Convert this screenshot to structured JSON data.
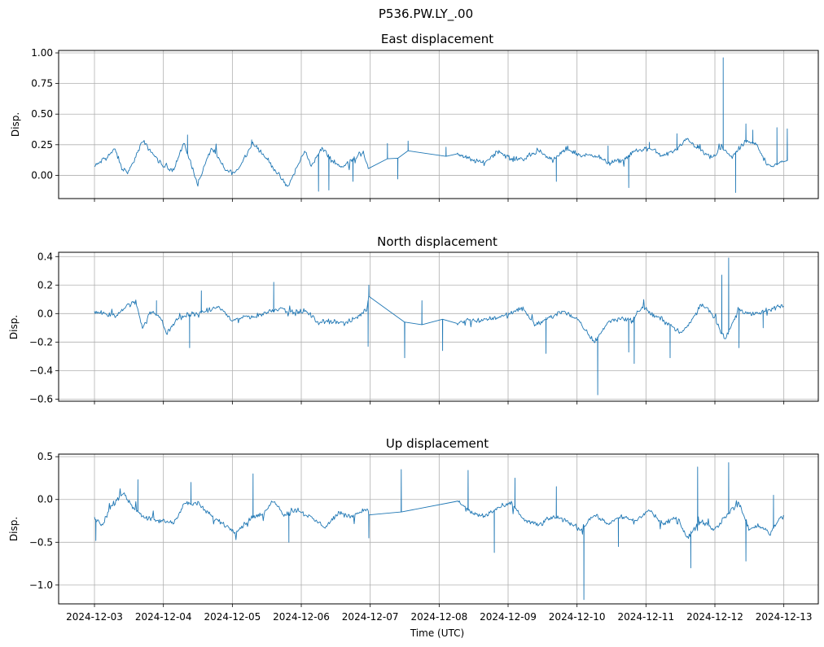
{
  "figure": {
    "suptitle": "P536.PW.LY_.00",
    "xlabel": "Time (UTC)",
    "x_ticks": [
      "2024-12-03",
      "2024-12-04",
      "2024-12-05",
      "2024-12-06",
      "2024-12-07",
      "2024-12-08",
      "2024-12-09",
      "2024-12-10",
      "2024-12-11",
      "2024-12-12",
      "2024-12-13"
    ],
    "line_color": "#1f77b4",
    "grid_color": "#b0b0b0"
  },
  "chart_data": [
    {
      "type": "line",
      "title": "East displacement",
      "ylabel": "Disp.",
      "xlim": [
        -0.52,
        10.5
      ],
      "ylim": [
        -0.19,
        1.02
      ],
      "y_ticks": [
        0.0,
        0.25,
        0.5,
        0.75,
        1.0
      ],
      "y_tick_labels": [
        "0.00",
        "0.25",
        "0.50",
        "0.75",
        "1.00"
      ],
      "grid": true,
      "gap": [
        3.98,
        5.25
      ],
      "x": [
        0,
        0.3,
        0.4,
        0.5,
        0.7,
        0.9,
        1.0,
        1.15,
        1.3,
        1.5,
        1.7,
        1.9,
        2.05,
        2.3,
        2.55,
        2.8,
        2.95,
        3.05,
        3.15,
        3.3,
        3.45,
        3.6,
        3.7,
        3.9,
        3.97,
        3.98,
        4.15,
        4.35,
        4.55,
        4.75,
        4.85,
        5.05,
        5.15,
        5.25,
        5.45,
        5.65,
        5.85,
        6.05,
        6.25,
        6.45,
        6.65,
        6.85,
        7.05,
        7.25,
        7.45,
        7.65,
        7.85,
        8.05,
        8.25,
        8.45,
        8.6,
        8.7,
        8.8,
        8.95,
        9.1,
        9.25,
        9.45,
        9.6,
        9.75,
        9.85,
        10.0
      ],
      "y": [
        0.07,
        0.21,
        0.05,
        0.03,
        0.28,
        0.14,
        0.07,
        0.05,
        0.26,
        -0.07,
        0.23,
        0.04,
        0.02,
        0.27,
        0.1,
        -0.1,
        0.08,
        0.2,
        0.08,
        0.22,
        0.12,
        0.06,
        0.12,
        0.18,
        0.07,
        0.06,
        0.15,
        0.12,
        0.2,
        0.11,
        0.33,
        0.16,
        0.15,
        0.18,
        0.13,
        0.1,
        0.2,
        0.13,
        0.14,
        0.2,
        0.12,
        0.22,
        0.16,
        0.17,
        0.1,
        0.12,
        0.2,
        0.22,
        0.16,
        0.21,
        0.3,
        0.25,
        0.2,
        0.14,
        0.22,
        0.15,
        0.28,
        0.25,
        0.1,
        0.07,
        0.12
      ],
      "spikes": [
        [
          9.12,
          0.96
        ],
        [
          1.35,
          0.33
        ],
        [
          4.25,
          0.26
        ],
        [
          2.28,
          0.29
        ],
        [
          4.55,
          0.28
        ],
        [
          4.4,
          -0.03
        ],
        [
          5.1,
          0.23
        ],
        [
          6.7,
          -0.05
        ],
        [
          7.45,
          0.24
        ],
        [
          7.75,
          -0.1
        ],
        [
          8.45,
          0.34
        ],
        [
          9.45,
          0.42
        ],
        [
          9.3,
          -0.14
        ],
        [
          8.75,
          0.25
        ],
        [
          9.9,
          0.39
        ],
        [
          8.05,
          0.27
        ],
        [
          3.4,
          -0.12
        ],
        [
          3.25,
          -0.13
        ],
        [
          3.75,
          -0.05
        ],
        [
          9.55,
          0.37
        ],
        [
          10.05,
          0.38
        ]
      ]
    },
    {
      "type": "line",
      "title": "North displacement",
      "ylabel": "Disp.",
      "xlim": [
        -0.52,
        10.5
      ],
      "ylim": [
        -0.615,
        0.43
      ],
      "y_ticks": [
        -0.6,
        -0.4,
        -0.2,
        0.0,
        0.2,
        0.4
      ],
      "y_tick_labels": [
        "−0.6",
        "−0.4",
        "−0.2",
        "0.0",
        "0.2",
        "0.4"
      ],
      "grid": true,
      "gap": [
        3.98,
        5.25
      ],
      "x": [
        0,
        0.2,
        0.3,
        0.45,
        0.6,
        0.7,
        0.8,
        0.95,
        1.05,
        1.2,
        1.35,
        1.5,
        1.65,
        1.8,
        2.0,
        2.2,
        2.35,
        2.5,
        2.7,
        2.9,
        3.05,
        3.25,
        3.45,
        3.65,
        3.8,
        3.95,
        3.98,
        4.2,
        4.35,
        4.5,
        4.7,
        4.9,
        5.05,
        5.25,
        5.4,
        5.55,
        5.8,
        6.0,
        6.2,
        6.4,
        6.6,
        6.8,
        7.0,
        7.25,
        7.45,
        7.65,
        7.8,
        7.95,
        8.1,
        8.3,
        8.5,
        8.65,
        8.8,
        8.95,
        9.15,
        9.35,
        9.55,
        9.75,
        9.9,
        10.0
      ],
      "y": [
        0.02,
        -0.01,
        -0.02,
        0.05,
        0.08,
        -0.1,
        0.01,
        -0.02,
        -0.14,
        -0.04,
        -0.01,
        0.0,
        0.02,
        0.05,
        -0.05,
        -0.02,
        -0.02,
        0.01,
        0.04,
        0.0,
        0.02,
        -0.06,
        -0.05,
        -0.07,
        -0.03,
        0.03,
        0.12,
        0.06,
        -0.07,
        -0.06,
        -0.1,
        -0.01,
        -0.04,
        -0.07,
        -0.04,
        -0.05,
        -0.03,
        -0.01,
        0.04,
        -0.08,
        -0.03,
        0.02,
        -0.04,
        -0.2,
        -0.06,
        -0.03,
        -0.05,
        0.05,
        -0.01,
        -0.06,
        -0.14,
        -0.06,
        0.07,
        0.01,
        -0.18,
        0.03,
        -0.01,
        0.02,
        0.04,
        0.06
      ],
      "spikes": [
        [
          9.2,
          0.39
        ],
        [
          9.1,
          0.27
        ],
        [
          7.3,
          -0.57
        ],
        [
          2.6,
          0.22
        ],
        [
          3.98,
          0.2
        ],
        [
          3.97,
          -0.23
        ],
        [
          4.5,
          -0.31
        ],
        [
          4.75,
          0.09
        ],
        [
          5.05,
          -0.26
        ],
        [
          1.55,
          0.16
        ],
        [
          1.38,
          -0.24
        ],
        [
          7.75,
          -0.27
        ],
        [
          7.83,
          -0.35
        ],
        [
          8.35,
          -0.31
        ],
        [
          9.35,
          -0.24
        ],
        [
          6.55,
          -0.28
        ],
        [
          0.9,
          0.09
        ],
        [
          9.7,
          -0.1
        ]
      ]
    },
    {
      "type": "line",
      "title": "Up displacement",
      "ylabel": "Disp.",
      "xlim": [
        -0.52,
        10.5
      ],
      "ylim": [
        -1.22,
        0.53
      ],
      "y_ticks": [
        -1.0,
        -0.5,
        0.0,
        0.5
      ],
      "y_tick_labels": [
        "−1.0",
        "−0.5",
        "0.0",
        "0.5"
      ],
      "grid": true,
      "gap": [
        3.98,
        5.25
      ],
      "x": [
        0,
        0.1,
        0.25,
        0.4,
        0.55,
        0.75,
        0.95,
        1.15,
        1.3,
        1.5,
        1.7,
        1.9,
        2.05,
        2.3,
        2.45,
        2.6,
        2.75,
        2.95,
        3.15,
        3.35,
        3.55,
        3.7,
        3.85,
        3.95,
        3.98,
        4.15,
        4.35,
        4.5,
        4.7,
        4.85,
        5.05,
        5.25,
        5.45,
        5.65,
        5.85,
        6.05,
        6.25,
        6.45,
        6.65,
        6.85,
        7.05,
        7.25,
        7.45,
        7.65,
        7.85,
        8.05,
        8.25,
        8.45,
        8.6,
        8.8,
        9.0,
        9.2,
        9.35,
        9.5,
        9.65,
        9.8,
        9.95,
        10.0
      ],
      "y": [
        -0.22,
        -0.3,
        -0.08,
        0.08,
        -0.08,
        -0.22,
        -0.25,
        -0.27,
        -0.05,
        -0.05,
        -0.2,
        -0.3,
        -0.38,
        -0.2,
        -0.18,
        0.0,
        -0.18,
        -0.12,
        -0.22,
        -0.32,
        -0.15,
        -0.2,
        -0.15,
        -0.1,
        -0.18,
        -0.08,
        0.0,
        -0.22,
        -0.18,
        -0.12,
        -0.06,
        0.0,
        -0.15,
        -0.2,
        -0.1,
        -0.05,
        -0.25,
        -0.3,
        -0.2,
        -0.25,
        -0.35,
        -0.18,
        -0.28,
        -0.2,
        -0.25,
        -0.12,
        -0.3,
        -0.2,
        -0.45,
        -0.25,
        -0.35,
        -0.15,
        -0.05,
        -0.35,
        -0.3,
        -0.4,
        -0.2,
        -0.2
      ],
      "spikes": [
        [
          7.1,
          -1.17
        ],
        [
          9.2,
          0.43
        ],
        [
          4.45,
          0.35
        ],
        [
          5.42,
          0.34
        ],
        [
          8.65,
          -0.8
        ],
        [
          8.75,
          0.38
        ],
        [
          3.98,
          -0.45
        ],
        [
          2.3,
          0.3
        ],
        [
          0.63,
          0.23
        ],
        [
          1.4,
          0.2
        ],
        [
          5.8,
          -0.62
        ],
        [
          6.1,
          0.25
        ],
        [
          9.45,
          -0.72
        ],
        [
          0.02,
          -0.48
        ],
        [
          6.7,
          0.15
        ],
        [
          7.6,
          -0.55
        ],
        [
          9.85,
          0.05
        ],
        [
          2.82,
          -0.5
        ]
      ]
    }
  ]
}
